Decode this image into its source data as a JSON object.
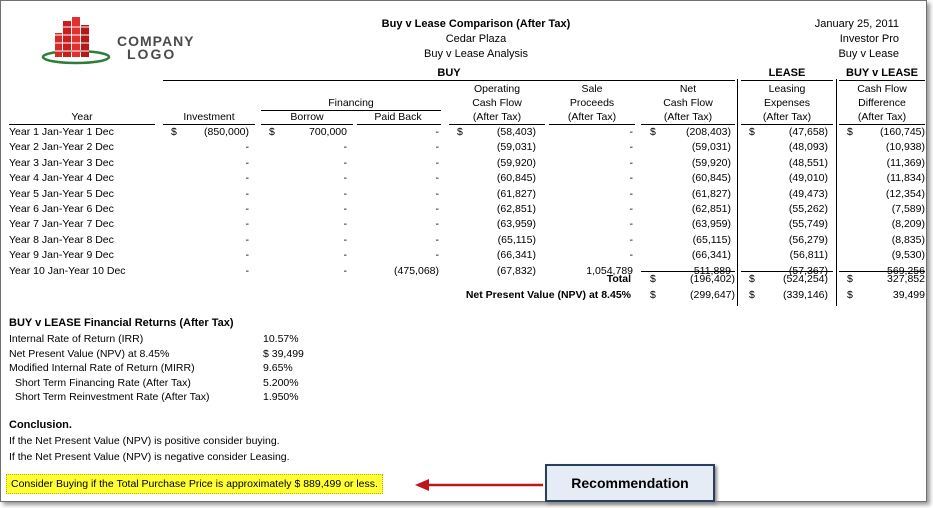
{
  "header": {
    "title": "Buy v Lease Comparison (After Tax)",
    "property": "Cedar Plaza",
    "analysis": "Buy v Lease Analysis",
    "date": "January 25, 2011",
    "app": "Investor Pro",
    "mode": "Buy v Lease",
    "logo_line1": "COMPANY",
    "logo_line2": "LOGO"
  },
  "groups": {
    "buy": "BUY",
    "lease": "LEASE",
    "diff": "BUY v LEASE"
  },
  "columns": {
    "year": "Year",
    "investment": "Investment",
    "financing": "Financing",
    "borrow": "Borrow",
    "paid_back": "Paid Back",
    "ocf_1": "Operating",
    "ocf_2": "Cash Flow",
    "ocf_3": "(After Tax)",
    "sale_1": "Sale",
    "sale_2": "Proceeds",
    "sale_3": "(After Tax)",
    "net_1": "Net",
    "net_2": "Cash Flow",
    "net_3": "(After Tax)",
    "lease_1": "Leasing",
    "lease_2": "Expenses",
    "lease_3": "(After Tax)",
    "diff_1": "Cash Flow",
    "diff_2": "Difference",
    "diff_3": "(After Tax)"
  },
  "currency": "$",
  "rows": [
    {
      "year": "Year 1 Jan-Year 1 Dec",
      "investment": "(850,000)",
      "borrow": "700,000",
      "paid": "-",
      "ocf": "(58,403)",
      "sale": "-",
      "net": "(208,403)",
      "lease": "(47,658)",
      "diff": "(160,745)"
    },
    {
      "year": "Year 2 Jan-Year 2 Dec",
      "investment": "-",
      "borrow": "-",
      "paid": "-",
      "ocf": "(59,031)",
      "sale": "-",
      "net": "(59,031)",
      "lease": "(48,093)",
      "diff": "(10,938)"
    },
    {
      "year": "Year 3 Jan-Year 3 Dec",
      "investment": "-",
      "borrow": "-",
      "paid": "-",
      "ocf": "(59,920)",
      "sale": "-",
      "net": "(59,920)",
      "lease": "(48,551)",
      "diff": "(11,369)"
    },
    {
      "year": "Year 4 Jan-Year 4 Dec",
      "investment": "-",
      "borrow": "-",
      "paid": "-",
      "ocf": "(60,845)",
      "sale": "-",
      "net": "(60,845)",
      "lease": "(49,010)",
      "diff": "(11,834)"
    },
    {
      "year": "Year 5 Jan-Year 5 Dec",
      "investment": "-",
      "borrow": "-",
      "paid": "-",
      "ocf": "(61,827)",
      "sale": "-",
      "net": "(61,827)",
      "lease": "(49,473)",
      "diff": "(12,354)"
    },
    {
      "year": "Year 6 Jan-Year 6 Dec",
      "investment": "-",
      "borrow": "-",
      "paid": "-",
      "ocf": "(62,851)",
      "sale": "-",
      "net": "(62,851)",
      "lease": "(55,262)",
      "diff": "(7,589)"
    },
    {
      "year": "Year 7 Jan-Year 7 Dec",
      "investment": "-",
      "borrow": "-",
      "paid": "-",
      "ocf": "(63,959)",
      "sale": "-",
      "net": "(63,959)",
      "lease": "(55,749)",
      "diff": "(8,209)"
    },
    {
      "year": "Year 8 Jan-Year 8 Dec",
      "investment": "-",
      "borrow": "-",
      "paid": "-",
      "ocf": "(65,115)",
      "sale": "-",
      "net": "(65,115)",
      "lease": "(56,279)",
      "diff": "(8,835)"
    },
    {
      "year": "Year 9 Jan-Year 9 Dec",
      "investment": "-",
      "borrow": "-",
      "paid": "-",
      "ocf": "(66,341)",
      "sale": "-",
      "net": "(66,341)",
      "lease": "(56,811)",
      "diff": "(9,530)"
    },
    {
      "year": "Year 10 Jan-Year 10 Dec",
      "investment": "-",
      "borrow": "-",
      "paid": "(475,068)",
      "ocf": "(67,832)",
      "sale": "1,054,789",
      "net": "511,889",
      "lease": "(57,367)",
      "diff": "569,256"
    }
  ],
  "totals": {
    "total_label": "Total",
    "total_net": "(196,402)",
    "total_lease": "(524,254)",
    "total_diff": "327,852",
    "npv_label": "Net Present Value (NPV) at 8.45%",
    "npv_net": "(299,647)",
    "npv_lease": "(339,146)",
    "npv_diff": "39,499"
  },
  "returns": {
    "title": "BUY v LEASE Financial Returns (After Tax)",
    "items": [
      {
        "label": "Internal Rate of Return (IRR)",
        "value": "10.57%"
      },
      {
        "label": "Net Present Value (NPV) at 8.45%",
        "value": "$ 39,499"
      },
      {
        "label": "Modified Internal Rate of Return (MIRR)",
        "value": "9.65%"
      },
      {
        "label": "Short Term Financing Rate (After Tax)",
        "value": "5.200%"
      },
      {
        "label": "Short Term Reinvestment Rate (After Tax)",
        "value": "1.950%"
      }
    ]
  },
  "conclusion": {
    "title": "Conclusion.",
    "line1": "If the Net Present Value (NPV) is positive consider buying.",
    "line2": "If the Net Present Value (NPV) is negative consider Leasing.",
    "highlight": "Consider Buying if the Total Purchase Price is  approximately  $ 889,499 or less."
  },
  "recommendation": {
    "label": "Recommendation"
  },
  "colors": {
    "highlight": "#ffff33",
    "arrow": "#c0141c",
    "callout_bg": "#e6ecf5",
    "callout_border": "#2b3f5c"
  }
}
